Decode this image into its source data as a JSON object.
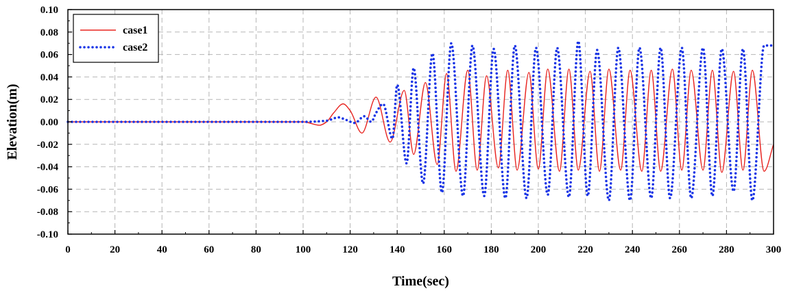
{
  "chart_data": {
    "type": "line",
    "xlabel": "Time(sec)",
    "ylabel": "Elevation(m)",
    "xlim": [
      0,
      300
    ],
    "ylim": [
      -0.1,
      0.1
    ],
    "x_ticks": [
      "0",
      "20",
      "40",
      "60",
      "80",
      "100",
      "120",
      "140",
      "160",
      "180",
      "200",
      "220",
      "240",
      "260",
      "280",
      "300"
    ],
    "y_ticks": [
      "-0.10",
      "-0.08",
      "-0.06",
      "-0.04",
      "-0.02",
      "0.00",
      "0.02",
      "0.04",
      "0.06",
      "0.08",
      "0.10"
    ],
    "grid": true,
    "legend_position": "top-left",
    "series": [
      {
        "name": "case1",
        "color": "#e8231f",
        "style": "solid",
        "x": [
          0,
          100,
          107,
          110,
          113,
          117,
          120,
          125,
          131,
          137,
          143,
          147,
          152,
          157,
          161,
          165,
          170,
          174,
          178,
          183,
          187,
          191,
          196,
          200,
          204,
          209,
          213,
          217,
          222,
          226,
          230,
          235,
          239,
          244,
          248,
          252,
          257,
          261,
          265,
          270,
          274,
          278,
          283,
          287,
          291,
          296,
          300
        ],
        "y": [
          0,
          0,
          -0.003,
          0,
          0.008,
          0.016,
          0.01,
          -0.01,
          0.022,
          -0.018,
          0.028,
          -0.029,
          0.035,
          -0.038,
          0.043,
          -0.044,
          0.046,
          -0.043,
          0.041,
          -0.041,
          0.046,
          -0.043,
          0.044,
          -0.042,
          0.047,
          -0.044,
          0.047,
          -0.043,
          0.045,
          -0.044,
          0.047,
          -0.043,
          0.046,
          -0.044,
          0.046,
          -0.044,
          0.047,
          -0.043,
          0.046,
          -0.043,
          0.046,
          -0.045,
          0.045,
          -0.043,
          0.046,
          -0.044,
          -0.02
        ]
      },
      {
        "name": "case2",
        "color": "#1a35e6",
        "style": "dotted",
        "x": [
          0,
          100,
          110,
          115,
          118,
          122,
          126,
          129,
          131,
          134,
          138,
          140,
          144,
          147,
          151,
          155,
          159,
          163,
          168,
          172,
          177,
          181,
          186,
          190,
          195,
          199,
          204,
          208,
          213,
          217,
          221,
          225,
          230,
          234,
          239,
          243,
          248,
          252,
          256,
          261,
          265,
          270,
          274,
          278,
          283,
          287,
          291,
          296,
          300
        ],
        "y": [
          0,
          0,
          0.001,
          0.004,
          0.002,
          -0.001,
          0.005,
          0,
          0.008,
          0.016,
          -0.015,
          0.033,
          -0.037,
          0.048,
          -0.055,
          0.061,
          -0.063,
          0.07,
          -0.066,
          0.068,
          -0.066,
          0.065,
          -0.068,
          0.068,
          -0.068,
          0.066,
          -0.065,
          0.066,
          -0.067,
          0.072,
          -0.066,
          0.064,
          -0.07,
          0.066,
          -0.07,
          0.066,
          -0.068,
          0.066,
          -0.068,
          0.066,
          -0.068,
          0.066,
          -0.066,
          0.065,
          -0.062,
          0.065,
          -0.07,
          0.068,
          0.068
        ]
      }
    ]
  }
}
